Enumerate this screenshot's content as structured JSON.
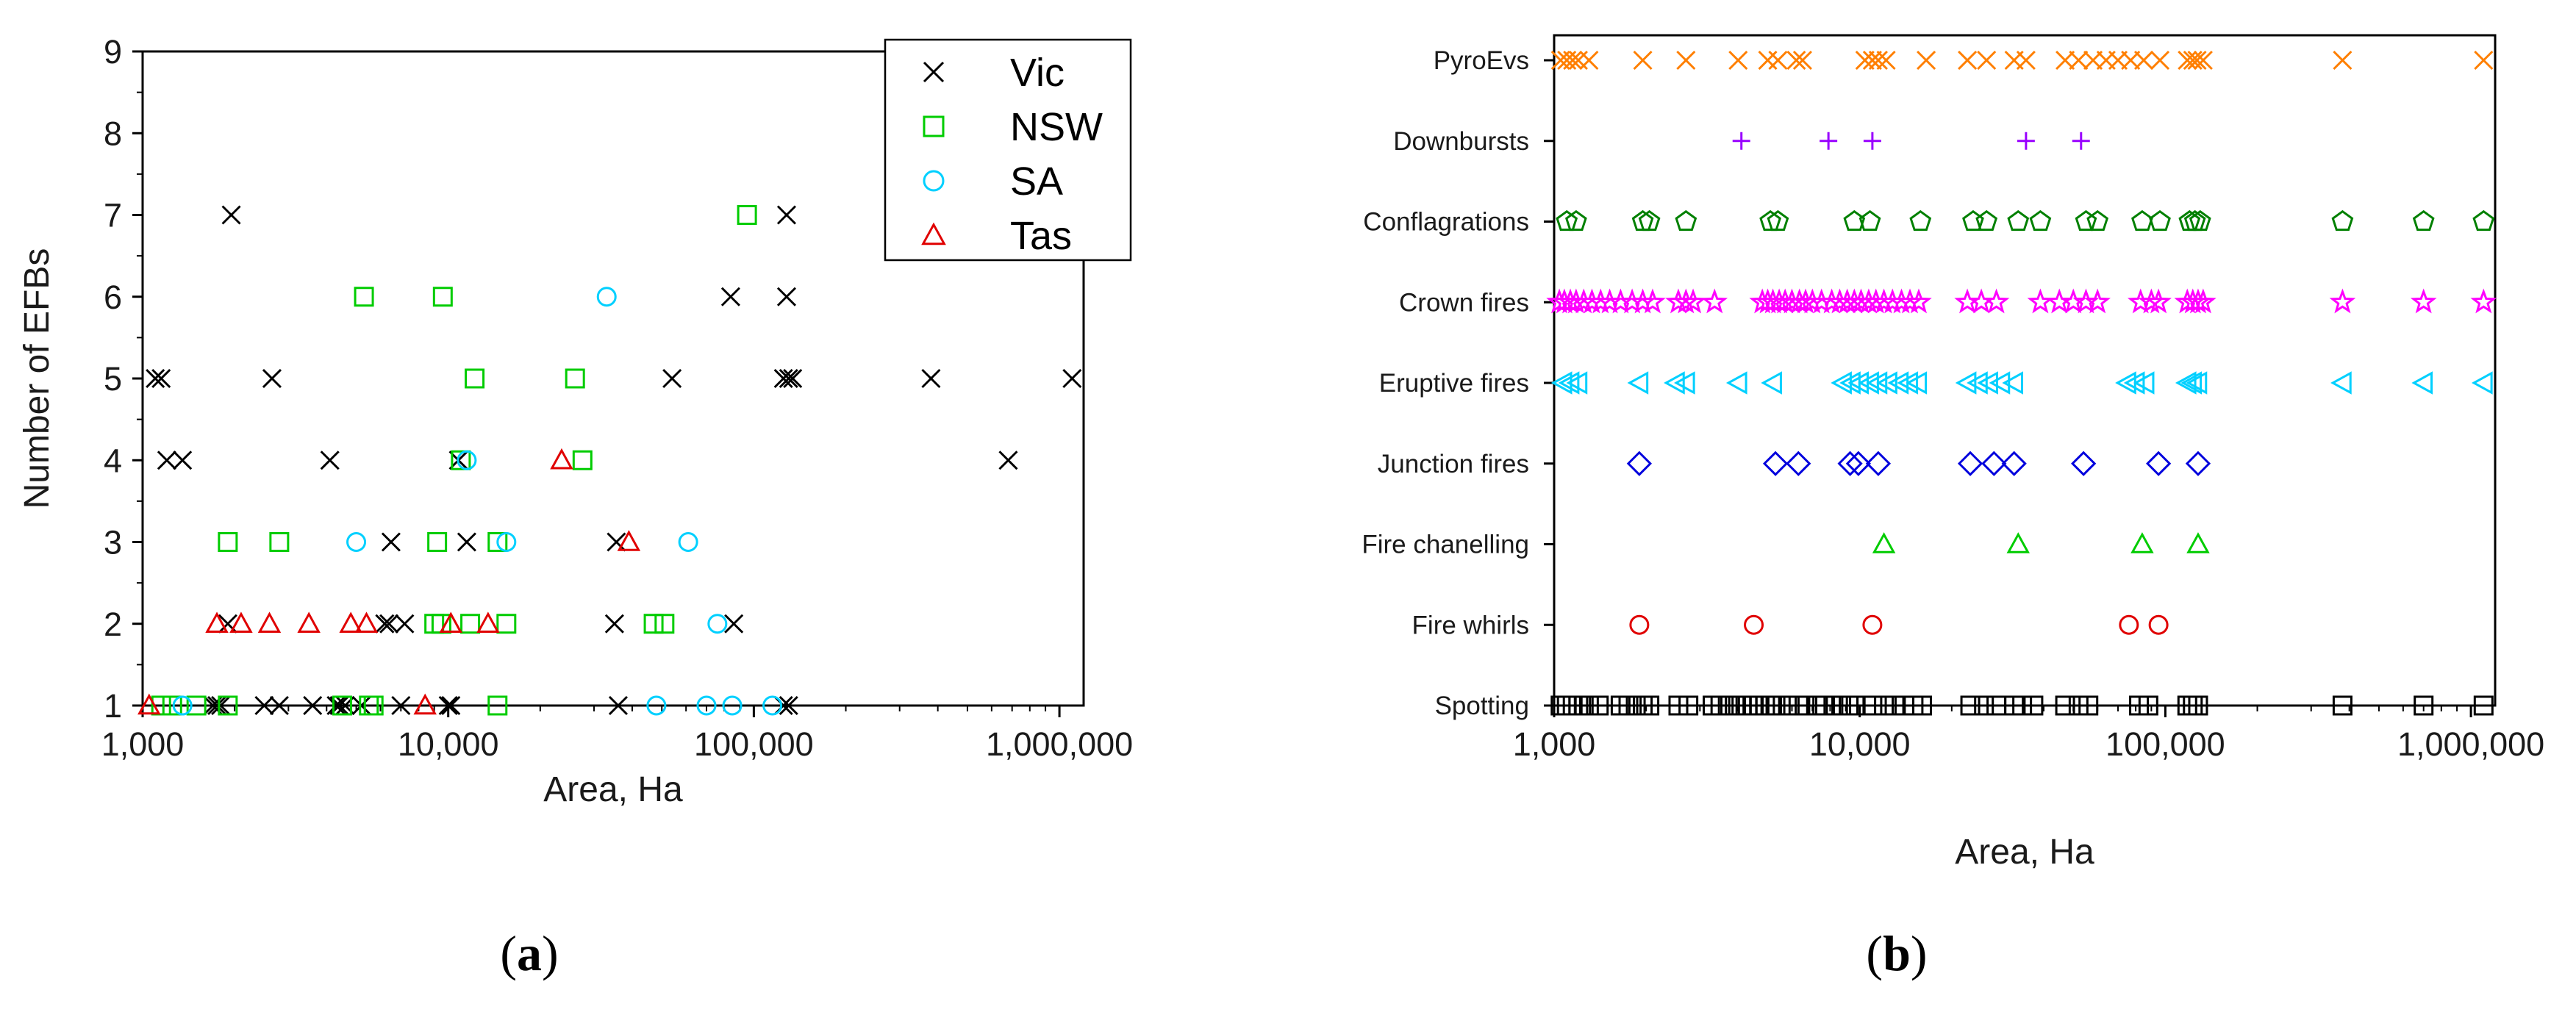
{
  "chart_data": [
    {
      "type": "scatter",
      "panel_label": {
        "open": "(",
        "letter": "a",
        "close": ")"
      },
      "xlabel": "Area, Ha",
      "ylabel": "Number of EFBs",
      "x_scale": "log",
      "xlim": [
        1000,
        1200000
      ],
      "ylim": [
        1,
        9
      ],
      "x_ticks": [
        1000,
        10000,
        100000,
        1000000
      ],
      "x_tick_labels": [
        "1,000",
        "10,000",
        "100,000",
        "1,000,000"
      ],
      "y_ticks": [
        1,
        2,
        3,
        4,
        5,
        6,
        7,
        8,
        9
      ],
      "y_tick_labels": [
        "1",
        "2",
        "3",
        "4",
        "5",
        "6",
        "7",
        "8",
        "9"
      ],
      "legend_position": "top-right",
      "series": [
        {
          "name": "Vic",
          "marker": "x",
          "color": "#000000",
          "points": [
            [
              1700,
              1
            ],
            [
              1750,
              1
            ],
            [
              1800,
              1
            ],
            [
              2500,
              1
            ],
            [
              2800,
              1
            ],
            [
              3600,
              1
            ],
            [
              4300,
              1
            ],
            [
              4400,
              1
            ],
            [
              4600,
              1
            ],
            [
              5200,
              1
            ],
            [
              7000,
              1
            ],
            [
              10000,
              1
            ],
            [
              10200,
              1
            ],
            [
              36000,
              1
            ],
            [
              125000,
              1
            ],
            [
              130000,
              1
            ],
            [
              1900,
              2
            ],
            [
              6200,
              2
            ],
            [
              6400,
              2
            ],
            [
              7200,
              2
            ],
            [
              35000,
              2
            ],
            [
              86000,
              2
            ],
            [
              6500,
              3
            ],
            [
              11500,
              3
            ],
            [
              35500,
              3
            ],
            [
              1200,
              4
            ],
            [
              1350,
              4
            ],
            [
              4100,
              4
            ],
            [
              10800,
              4
            ],
            [
              680000,
              4
            ],
            [
              1100,
              5
            ],
            [
              1150,
              5
            ],
            [
              2650,
              5
            ],
            [
              54000,
              5
            ],
            [
              125000,
              5
            ],
            [
              130000,
              5
            ],
            [
              134000,
              5
            ],
            [
              380000,
              5
            ],
            [
              1100000,
              5
            ],
            [
              84000,
              6
            ],
            [
              128000,
              6
            ],
            [
              1950,
              7
            ],
            [
              128000,
              7
            ]
          ]
        },
        {
          "name": "NSW",
          "marker": "square",
          "color": "#00cc00",
          "points": [
            [
              1150,
              1
            ],
            [
              1250,
              1
            ],
            [
              1500,
              1
            ],
            [
              1900,
              1
            ],
            [
              4500,
              1
            ],
            [
              5500,
              1
            ],
            [
              5700,
              1
            ],
            [
              14500,
              1
            ],
            [
              9000,
              2
            ],
            [
              9500,
              2
            ],
            [
              11800,
              2
            ],
            [
              15500,
              2
            ],
            [
              47000,
              2
            ],
            [
              51000,
              2
            ],
            [
              1900,
              3
            ],
            [
              2800,
              3
            ],
            [
              9200,
              3
            ],
            [
              14500,
              3
            ],
            [
              11000,
              4
            ],
            [
              27500,
              4
            ],
            [
              12200,
              5
            ],
            [
              26000,
              5
            ],
            [
              5300,
              6
            ],
            [
              9600,
              6
            ],
            [
              95000,
              7
            ]
          ]
        },
        {
          "name": "SA",
          "marker": "circle",
          "color": "#00d0ff",
          "points": [
            [
              1350,
              1
            ],
            [
              48000,
              1
            ],
            [
              70000,
              1
            ],
            [
              85000,
              1
            ],
            [
              115000,
              1
            ],
            [
              76000,
              2
            ],
            [
              5000,
              3
            ],
            [
              15500,
              3
            ],
            [
              61000,
              3
            ],
            [
              11500,
              4
            ],
            [
              33000,
              6
            ]
          ]
        },
        {
          "name": "Tas",
          "marker": "triangle",
          "color": "#e00000",
          "points": [
            [
              1050,
              1
            ],
            [
              8400,
              1
            ],
            [
              1750,
              2
            ],
            [
              2100,
              2
            ],
            [
              2600,
              2
            ],
            [
              3500,
              2
            ],
            [
              4800,
              2
            ],
            [
              5400,
              2
            ],
            [
              10200,
              2
            ],
            [
              13500,
              2
            ],
            [
              39000,
              3
            ],
            [
              23500,
              4
            ]
          ]
        }
      ]
    },
    {
      "type": "scatter",
      "panel_label": {
        "open": "(",
        "letter": "b",
        "close": ")"
      },
      "xlabel": "Area, Ha",
      "x_scale": "log",
      "xlim": [
        1000,
        1200000
      ],
      "x_ticks": [
        1000,
        10000,
        100000,
        1000000
      ],
      "x_tick_labels": [
        "1,000",
        "10,000",
        "100,000",
        "1,000,000"
      ],
      "categories": [
        "Spotting",
        "Fire whirls",
        "Fire chanelling",
        "Junction fires",
        "Eruptive fires",
        "Crown fires",
        "Conflagrations",
        "Downbursts",
        "PyroEvs"
      ],
      "series": [
        {
          "name": "Spotting",
          "marker": "square",
          "color": "#000000",
          "x": [
            1050,
            1100,
            1150,
            1200,
            1250,
            1300,
            1400,
            1650,
            1750,
            1850,
            1950,
            2050,
            2550,
            2750,
            3300,
            3500,
            3700,
            3900,
            4100,
            4300,
            4500,
            4700,
            4900,
            5100,
            5300,
            5900,
            6300,
            6600,
            7300,
            7700,
            8200,
            8700,
            9200,
            9700,
            10500,
            11000,
            12000,
            13000,
            14000,
            15000,
            16000,
            23000,
            25500,
            28000,
            32000,
            34000,
            37000,
            47000,
            52000,
            56000,
            82000,
            88000,
            118000,
            123000,
            128000,
            380000,
            700000,
            1100000
          ]
        },
        {
          "name": "Fire whirls",
          "marker": "circle",
          "color": "#e00000",
          "x": [
            1900,
            4500,
            11000,
            76000,
            95000
          ]
        },
        {
          "name": "Fire chanelling",
          "marker": "triangle",
          "color": "#00cc00",
          "x": [
            12000,
            33000,
            84000,
            128000
          ]
        },
        {
          "name": "Junction fires",
          "marker": "diamond",
          "color": "#0000dd",
          "x": [
            1900,
            5300,
            6300,
            9300,
            9900,
            11500,
            23000,
            27500,
            32000,
            54000,
            95000,
            128000
          ]
        },
        {
          "name": "Eruptive fires",
          "marker": "triangle-left",
          "color": "#00d0ff",
          "x": [
            1070,
            1130,
            1200,
            1900,
            2500,
            2700,
            4000,
            5200,
            8800,
            9400,
            10000,
            10800,
            11500,
            12400,
            13500,
            14500,
            15500,
            22500,
            24500,
            26500,
            29000,
            32000,
            75000,
            80000,
            86000,
            118000,
            123000,
            128000,
            380000,
            700000,
            1100000
          ]
        },
        {
          "name": "Crown fires",
          "marker": "star",
          "color": "#ff00ff",
          "x": [
            1040,
            1080,
            1130,
            1180,
            1250,
            1330,
            1420,
            1520,
            1650,
            1800,
            1950,
            2100,
            2550,
            2700,
            2850,
            3350,
            4800,
            5000,
            5200,
            5450,
            5700,
            6000,
            6350,
            6650,
            7000,
            7500,
            8100,
            8600,
            9100,
            9600,
            10100,
            10700,
            11300,
            12000,
            12800,
            13700,
            14600,
            15600,
            22500,
            25000,
            28000,
            39000,
            45000,
            50000,
            55000,
            60000,
            83000,
            90000,
            95000,
            118000,
            123000,
            128000,
            133000,
            380000,
            700000,
            1100000
          ]
        },
        {
          "name": "Conflagrations",
          "marker": "pentagon",
          "color": "#008000",
          "x": [
            1100,
            1180,
            1950,
            2050,
            2700,
            5100,
            5400,
            9600,
            10800,
            15800,
            23500,
            26000,
            33000,
            39000,
            55000,
            60000,
            84000,
            96000,
            120000,
            125000,
            130000,
            380000,
            700000,
            1100000
          ]
        },
        {
          "name": "Downbursts",
          "marker": "plus",
          "color": "#9900ff",
          "x": [
            4100,
            7900,
            11000,
            35000,
            53000
          ]
        },
        {
          "name": "PyroEvs",
          "marker": "x",
          "color": "#ff7f00",
          "x": [
            1050,
            1100,
            1150,
            1200,
            1300,
            1950,
            2700,
            4000,
            5000,
            5400,
            6200,
            6500,
            10400,
            11000,
            11500,
            12200,
            16500,
            22500,
            26000,
            32000,
            35000,
            47000,
            52000,
            58000,
            64000,
            70000,
            77000,
            85000,
            96000,
            118000,
            123000,
            127000,
            133000,
            380000,
            1100000
          ]
        }
      ]
    }
  ]
}
